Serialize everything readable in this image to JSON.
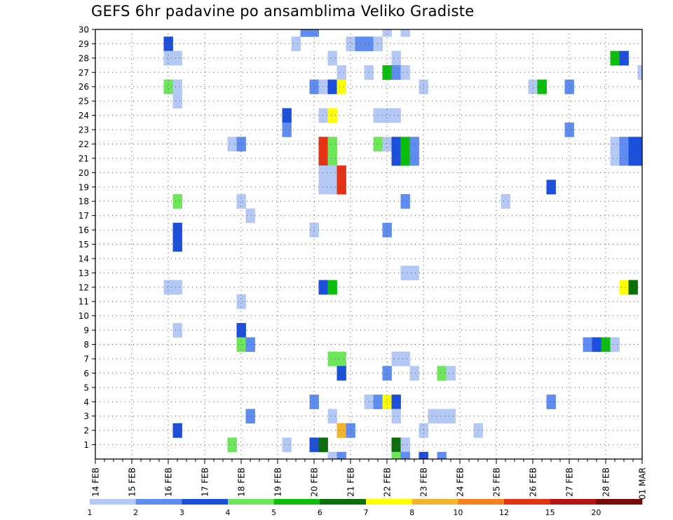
{
  "chart_data": {
    "type": "heatmap",
    "title": "GEFS 6hr padavine po ansamblima Veliko Gradiste",
    "xlabel": "",
    "ylabel": "",
    "x_ticks": [
      "14 FEB",
      "15 FEB",
      "16 FEB",
      "17 FEB",
      "18 FEB",
      "19 FEB",
      "20 FEB",
      "21 FEB",
      "22 FEB",
      "23 FEB",
      "24 FEB",
      "25 FEB",
      "26 FEB",
      "27 FEB",
      "28 FEB",
      "01 MAR"
    ],
    "x_range": [
      0,
      60
    ],
    "x_step_hours": 6,
    "members": [
      1,
      30
    ],
    "y_ticks": [
      1,
      2,
      3,
      4,
      5,
      6,
      7,
      8,
      9,
      10,
      11,
      12,
      13,
      14,
      15,
      16,
      17,
      18,
      19,
      20,
      21,
      22,
      23,
      24,
      25,
      26,
      27,
      28,
      29,
      30
    ],
    "grid": true,
    "legend_placement": "bottom",
    "legend": {
      "labels": [
        "1",
        "2",
        "3",
        "4",
        "5",
        "6",
        "7",
        "8",
        "10",
        "12",
        "15",
        "20"
      ],
      "colors": [
        "#b4c8f5",
        "#5f8cf0",
        "#1c4fdb",
        "#6ee65a",
        "#0cbe0c",
        "#0a6e0a",
        "#ffff00",
        "#f5b42d",
        "#f5821e",
        "#e63214",
        "#b41414",
        "#780a0a"
      ]
    },
    "cells": [
      {
        "member": 30,
        "step": 23,
        "cat": 1
      },
      {
        "member": 30,
        "step": 24,
        "cat": 1
      },
      {
        "member": 30,
        "step": 32,
        "cat": 0
      },
      {
        "member": 30,
        "step": 34,
        "cat": 0
      },
      {
        "member": 29,
        "step": 8,
        "cat": 2
      },
      {
        "member": 29,
        "step": 22,
        "cat": 0
      },
      {
        "member": 29,
        "step": 28,
        "cat": 0
      },
      {
        "member": 29,
        "step": 29,
        "cat": 1
      },
      {
        "member": 29,
        "step": 30,
        "cat": 1
      },
      {
        "member": 29,
        "step": 31,
        "cat": 0
      },
      {
        "member": 28,
        "step": 8,
        "cat": 0
      },
      {
        "member": 28,
        "step": 9,
        "cat": 0
      },
      {
        "member": 28,
        "step": 26,
        "cat": 0
      },
      {
        "member": 28,
        "step": 33,
        "cat": 0
      },
      {
        "member": 28,
        "step": 57,
        "cat": 4
      },
      {
        "member": 28,
        "step": 58,
        "cat": 2
      },
      {
        "member": 27,
        "step": 27,
        "cat": 0
      },
      {
        "member": 27,
        "step": 30,
        "cat": 0
      },
      {
        "member": 27,
        "step": 32,
        "cat": 4
      },
      {
        "member": 27,
        "step": 33,
        "cat": 1
      },
      {
        "member": 27,
        "step": 34,
        "cat": 0
      },
      {
        "member": 27,
        "step": 60,
        "cat": 0
      },
      {
        "member": 26,
        "step": 8,
        "cat": 3
      },
      {
        "member": 26,
        "step": 9,
        "cat": 0
      },
      {
        "member": 26,
        "step": 24,
        "cat": 1
      },
      {
        "member": 26,
        "step": 25,
        "cat": 0
      },
      {
        "member": 26,
        "step": 26,
        "cat": 2
      },
      {
        "member": 26,
        "step": 27,
        "cat": 6
      },
      {
        "member": 26,
        "step": 36,
        "cat": 0
      },
      {
        "member": 26,
        "step": 48,
        "cat": 0
      },
      {
        "member": 26,
        "step": 49,
        "cat": 4
      },
      {
        "member": 26,
        "step": 52,
        "cat": 1
      },
      {
        "member": 25,
        "step": 9,
        "cat": 0
      },
      {
        "member": 24,
        "step": 21,
        "cat": 2
      },
      {
        "member": 24,
        "step": 25,
        "cat": 0
      },
      {
        "member": 24,
        "step": 26,
        "cat": 6
      },
      {
        "member": 24,
        "step": 31,
        "cat": 0
      },
      {
        "member": 24,
        "step": 32,
        "cat": 0
      },
      {
        "member": 24,
        "step": 33,
        "cat": 0
      },
      {
        "member": 23,
        "step": 21,
        "cat": 1
      },
      {
        "member": 23,
        "step": 52,
        "cat": 1
      },
      {
        "member": 22,
        "step": 15,
        "cat": 0
      },
      {
        "member": 22,
        "step": 16,
        "cat": 1
      },
      {
        "member": 22,
        "step": 25,
        "cat": 9
      },
      {
        "member": 22,
        "step": 26,
        "cat": 3
      },
      {
        "member": 22,
        "step": 31,
        "cat": 3
      },
      {
        "member": 22,
        "step": 32,
        "cat": 0
      },
      {
        "member": 22,
        "step": 33,
        "cat": 2
      },
      {
        "member": 22,
        "step": 34,
        "cat": 4
      },
      {
        "member": 22,
        "step": 35,
        "cat": 1
      },
      {
        "member": 22,
        "step": 57,
        "cat": 0
      },
      {
        "member": 22,
        "step": 58,
        "cat": 1
      },
      {
        "member": 22,
        "step": 59,
        "cat": 2
      },
      {
        "member": 22,
        "step": 60,
        "cat": 2
      },
      {
        "member": 21,
        "step": 25,
        "cat": 9
      },
      {
        "member": 21,
        "step": 26,
        "cat": 3
      },
      {
        "member": 21,
        "step": 33,
        "cat": 2
      },
      {
        "member": 21,
        "step": 34,
        "cat": 4
      },
      {
        "member": 21,
        "step": 35,
        "cat": 1
      },
      {
        "member": 21,
        "step": 57,
        "cat": 0
      },
      {
        "member": 21,
        "step": 58,
        "cat": 1
      },
      {
        "member": 21,
        "step": 59,
        "cat": 2
      },
      {
        "member": 21,
        "step": 60,
        "cat": 2
      },
      {
        "member": 20,
        "step": 25,
        "cat": 0
      },
      {
        "member": 20,
        "step": 26,
        "cat": 0
      },
      {
        "member": 20,
        "step": 27,
        "cat": 9
      },
      {
        "member": 19,
        "step": 25,
        "cat": 0
      },
      {
        "member": 19,
        "step": 26,
        "cat": 0
      },
      {
        "member": 19,
        "step": 27,
        "cat": 9
      },
      {
        "member": 19,
        "step": 50,
        "cat": 2
      },
      {
        "member": 18,
        "step": 9,
        "cat": 3
      },
      {
        "member": 18,
        "step": 16,
        "cat": 0
      },
      {
        "member": 18,
        "step": 34,
        "cat": 1
      },
      {
        "member": 18,
        "step": 45,
        "cat": 0
      },
      {
        "member": 17,
        "step": 17,
        "cat": 0
      },
      {
        "member": 16,
        "step": 9,
        "cat": 2
      },
      {
        "member": 16,
        "step": 24,
        "cat": 0
      },
      {
        "member": 16,
        "step": 32,
        "cat": 1
      },
      {
        "member": 15,
        "step": 9,
        "cat": 2
      },
      {
        "member": 13,
        "step": 34,
        "cat": 0
      },
      {
        "member": 13,
        "step": 35,
        "cat": 0
      },
      {
        "member": 12,
        "step": 8,
        "cat": 0
      },
      {
        "member": 12,
        "step": 9,
        "cat": 0
      },
      {
        "member": 12,
        "step": 25,
        "cat": 2
      },
      {
        "member": 12,
        "step": 26,
        "cat": 4
      },
      {
        "member": 12,
        "step": 58,
        "cat": 6
      },
      {
        "member": 12,
        "step": 59,
        "cat": 5
      },
      {
        "member": 11,
        "step": 16,
        "cat": 0
      },
      {
        "member": 9,
        "step": 9,
        "cat": 0
      },
      {
        "member": 9,
        "step": 16,
        "cat": 2
      },
      {
        "member": 8,
        "step": 16,
        "cat": 3
      },
      {
        "member": 8,
        "step": 17,
        "cat": 1
      },
      {
        "member": 8,
        "step": 54,
        "cat": 1
      },
      {
        "member": 8,
        "step": 55,
        "cat": 2
      },
      {
        "member": 8,
        "step": 56,
        "cat": 4
      },
      {
        "member": 8,
        "step": 57,
        "cat": 0
      },
      {
        "member": 7,
        "step": 26,
        "cat": 3
      },
      {
        "member": 7,
        "step": 27,
        "cat": 3
      },
      {
        "member": 7,
        "step": 33,
        "cat": 0
      },
      {
        "member": 7,
        "step": 34,
        "cat": 0
      },
      {
        "member": 6,
        "step": 27,
        "cat": 2
      },
      {
        "member": 6,
        "step": 32,
        "cat": 1
      },
      {
        "member": 6,
        "step": 35,
        "cat": 0
      },
      {
        "member": 6,
        "step": 38,
        "cat": 3
      },
      {
        "member": 6,
        "step": 39,
        "cat": 0
      },
      {
        "member": 4,
        "step": 24,
        "cat": 1
      },
      {
        "member": 4,
        "step": 30,
        "cat": 0
      },
      {
        "member": 4,
        "step": 31,
        "cat": 1
      },
      {
        "member": 4,
        "step": 32,
        "cat": 6
      },
      {
        "member": 4,
        "step": 33,
        "cat": 2
      },
      {
        "member": 4,
        "step": 50,
        "cat": 1
      },
      {
        "member": 3,
        "step": 17,
        "cat": 1
      },
      {
        "member": 3,
        "step": 26,
        "cat": 0
      },
      {
        "member": 3,
        "step": 33,
        "cat": 0
      },
      {
        "member": 3,
        "step": 37,
        "cat": 0
      },
      {
        "member": 3,
        "step": 38,
        "cat": 0
      },
      {
        "member": 3,
        "step": 39,
        "cat": 0
      },
      {
        "member": 2,
        "step": 9,
        "cat": 2
      },
      {
        "member": 2,
        "step": 27,
        "cat": 7
      },
      {
        "member": 2,
        "step": 28,
        "cat": 1
      },
      {
        "member": 2,
        "step": 36,
        "cat": 0
      },
      {
        "member": 2,
        "step": 42,
        "cat": 0
      },
      {
        "member": 1,
        "step": 15,
        "cat": 3
      },
      {
        "member": 1,
        "step": 21,
        "cat": 0
      },
      {
        "member": 1,
        "step": 24,
        "cat": 2
      },
      {
        "member": 1,
        "step": 25,
        "cat": 5
      },
      {
        "member": 1,
        "step": 33,
        "cat": 5
      },
      {
        "member": 1,
        "step": 34,
        "cat": 0
      },
      {
        "member": 0,
        "step": 26,
        "cat": 0
      },
      {
        "member": 0,
        "step": 27,
        "cat": 1
      },
      {
        "member": 0,
        "step": 33,
        "cat": 3
      },
      {
        "member": 0,
        "step": 34,
        "cat": 1
      },
      {
        "member": 0,
        "step": 36,
        "cat": 2
      },
      {
        "member": 0,
        "step": 38,
        "cat": 1
      }
    ]
  }
}
